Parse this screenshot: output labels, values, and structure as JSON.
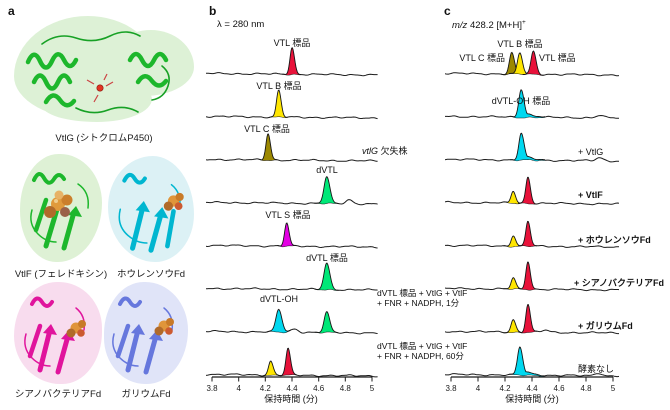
{
  "figure": {
    "panel_a": {
      "letter": "a",
      "proteins": [
        {
          "name": "VtlG",
          "caption": "VtlG (シトクロムP450)"
        },
        {
          "name": "VtlF",
          "caption": "VtlF (フェレドキシン)"
        },
        {
          "name": "ホウレンソウFd",
          "caption": "ホウレンソウFd"
        },
        {
          "name": "シアノバクテリアFd",
          "caption": "シアノバクテリアFd"
        },
        {
          "name": "ガリウムFd",
          "caption": "ガリウムFd"
        }
      ]
    },
    "panel_b": {
      "letter": "b",
      "condition": "λ = 280 nm"
    },
    "panel_c": {
      "letter": "c",
      "mz_italic": "m/z",
      "mz_rest": " 428.2 [M+H]",
      "mz_sup": "+"
    }
  },
  "chart_data": [
    {
      "id": "b",
      "type": "line",
      "kind": "HPLC chromatogram stack",
      "detection": "λ = 280 nm",
      "xlabel": "保持時間 (分)",
      "x_range": [
        3.8,
        5
      ],
      "x_ticks": [
        "3.8",
        "4",
        "4.2",
        "4.4",
        "4.6",
        "4.8",
        "5"
      ],
      "traces": [
        {
          "label": "VTL 標品",
          "peaks": [
            {
              "rt": 4.4,
              "height": 0.95,
              "color": "#e8123a",
              "compound": "VTL"
            }
          ]
        },
        {
          "label": "VTL B 標品",
          "peaks": [
            {
              "rt": 4.3,
              "height": 0.95,
              "color": "#ffe600",
              "compound": "VTL B"
            }
          ]
        },
        {
          "label": "VTL C 標品",
          "peaks": [
            {
              "rt": 4.22,
              "height": 0.95,
              "color": "#9c8800",
              "compound": "VTL C"
            }
          ]
        },
        {
          "label": "dVTL",
          "right_label_gene": "vtlG",
          "right_label_rest": " 欠失株",
          "peaks": [
            {
              "rt": 4.66,
              "height": 0.95,
              "color": "#00e878",
              "compound": "dVTL",
              "w": 2.7
            },
            {
              "rt": 4.83,
              "height": 0.14,
              "color": null
            }
          ]
        },
        {
          "label": "VTL S 標品",
          "peaks": [
            {
              "rt": 4.36,
              "height": 0.82,
              "color": "#e400e4",
              "compound": "VTL S"
            }
          ]
        },
        {
          "label": "dVTL 標品",
          "peaks": [
            {
              "rt": 4.66,
              "height": 0.95,
              "color": "#00e878",
              "compound": "dVTL",
              "w": 2.7
            }
          ]
        },
        {
          "label": "dVTL-OH",
          "right_label_line1": "dVTL 標品 + VtlG + VtlF",
          "right_label_line2": "+ FNR + NADPH, 1分",
          "peaks": [
            {
              "rt": 4.3,
              "height": 0.8,
              "color": "#00d8f0",
              "compound": "dVTL-OH",
              "w": 2.8
            },
            {
              "rt": 4.42,
              "height": 0.12,
              "color": null
            },
            {
              "rt": 4.66,
              "height": 0.72,
              "color": "#00e878",
              "compound": "dVTL",
              "w": 2.6
            }
          ]
        },
        {
          "right_label_line1": "dVTL 標品 + VtlG + VtlF",
          "right_label_line2": "+ FNR + NADPH, 60分",
          "peaks": [
            {
              "rt": 4.24,
              "height": 0.5,
              "color": "#ffe600",
              "compound": "VTL B"
            },
            {
              "rt": 4.37,
              "height": 0.95,
              "color": "#e8123a",
              "compound": "VTL"
            }
          ]
        }
      ]
    },
    {
      "id": "c",
      "type": "line",
      "kind": "extracted ion chromatogram stack",
      "detection": "m/z 428.2 [M+H]+",
      "xlabel": "保持時間 (分)",
      "x_range": [
        3.8,
        5
      ],
      "x_ticks": [
        "3.8",
        "4",
        "4.2",
        "4.4",
        "4.6",
        "4.8",
        "5"
      ],
      "traces": [
        {
          "label_left": "VTL C 標品",
          "label_top": "VTL B 標品",
          "label_right": "VTL 標品",
          "peaks": [
            {
              "rt": 4.25,
              "height": 0.75,
              "color": "#9c8800",
              "compound": "VTL C",
              "w": 2.3
            },
            {
              "rt": 4.31,
              "height": 0.75,
              "color": "#ffe600",
              "compound": "VTL B",
              "w": 2.3
            },
            {
              "rt": 4.41,
              "height": 0.82,
              "color": "#e8123a",
              "compound": "VTL",
              "w": 2.3
            }
          ]
        },
        {
          "label": "dVTL-OH 標品",
          "peaks": [
            {
              "rt": 4.32,
              "height": 1.0,
              "color": "#00d8f0",
              "compound": "dVTL-OH",
              "w": 2.4,
              "tail": true
            },
            {
              "rt": 4.9,
              "height": 0.09,
              "color": null
            }
          ]
        },
        {
          "label_right": "+ VtlG",
          "peaks": [
            {
              "rt": 4.32,
              "height": 0.95,
              "color": "#00d8f0",
              "compound": "dVTL-OH",
              "w": 2.4,
              "tail": true
            },
            {
              "rt": 4.9,
              "height": 0.11,
              "color": null
            }
          ]
        },
        {
          "label_right": "+ VtlF",
          "emphasis": true,
          "peaks": [
            {
              "rt": 4.26,
              "height": 0.42,
              "color": "#ffe600",
              "compound": "VTL B"
            },
            {
              "rt": 4.37,
              "height": 0.95,
              "color": "#e8123a",
              "compound": "VTL"
            }
          ]
        },
        {
          "label_right": "+ ホウレンソウFd",
          "emphasis": true,
          "peaks": [
            {
              "rt": 4.26,
              "height": 0.38,
              "color": "#ffe600",
              "compound": "VTL B"
            },
            {
              "rt": 4.37,
              "height": 0.9,
              "color": "#e8123a",
              "compound": "VTL"
            }
          ]
        },
        {
          "label_right": "+ シアノバクテリアFd",
          "emphasis": true,
          "peaks": [
            {
              "rt": 4.26,
              "height": 0.4,
              "color": "#ffe600",
              "compound": "VTL B"
            },
            {
              "rt": 4.37,
              "height": 1.0,
              "color": "#e8123a",
              "compound": "VTL"
            }
          ]
        },
        {
          "label_right": "+ ガリウムFd",
          "emphasis": true,
          "peaks": [
            {
              "rt": 4.26,
              "height": 0.45,
              "color": "#ffe600",
              "compound": "VTL B"
            },
            {
              "rt": 4.37,
              "height": 1.0,
              "color": "#e8123a",
              "compound": "VTL"
            },
            {
              "rt": 4.5,
              "height": 0.08,
              "color": null
            }
          ]
        },
        {
          "label_right": "酵素なし",
          "peaks": [
            {
              "rt": 4.31,
              "height": 1.0,
              "color": "#00d8f0",
              "compound": "dVTL-OH",
              "w": 2.4,
              "tail": true
            },
            {
              "rt": 4.89,
              "height": 0.11,
              "color": null
            }
          ]
        }
      ]
    }
  ]
}
